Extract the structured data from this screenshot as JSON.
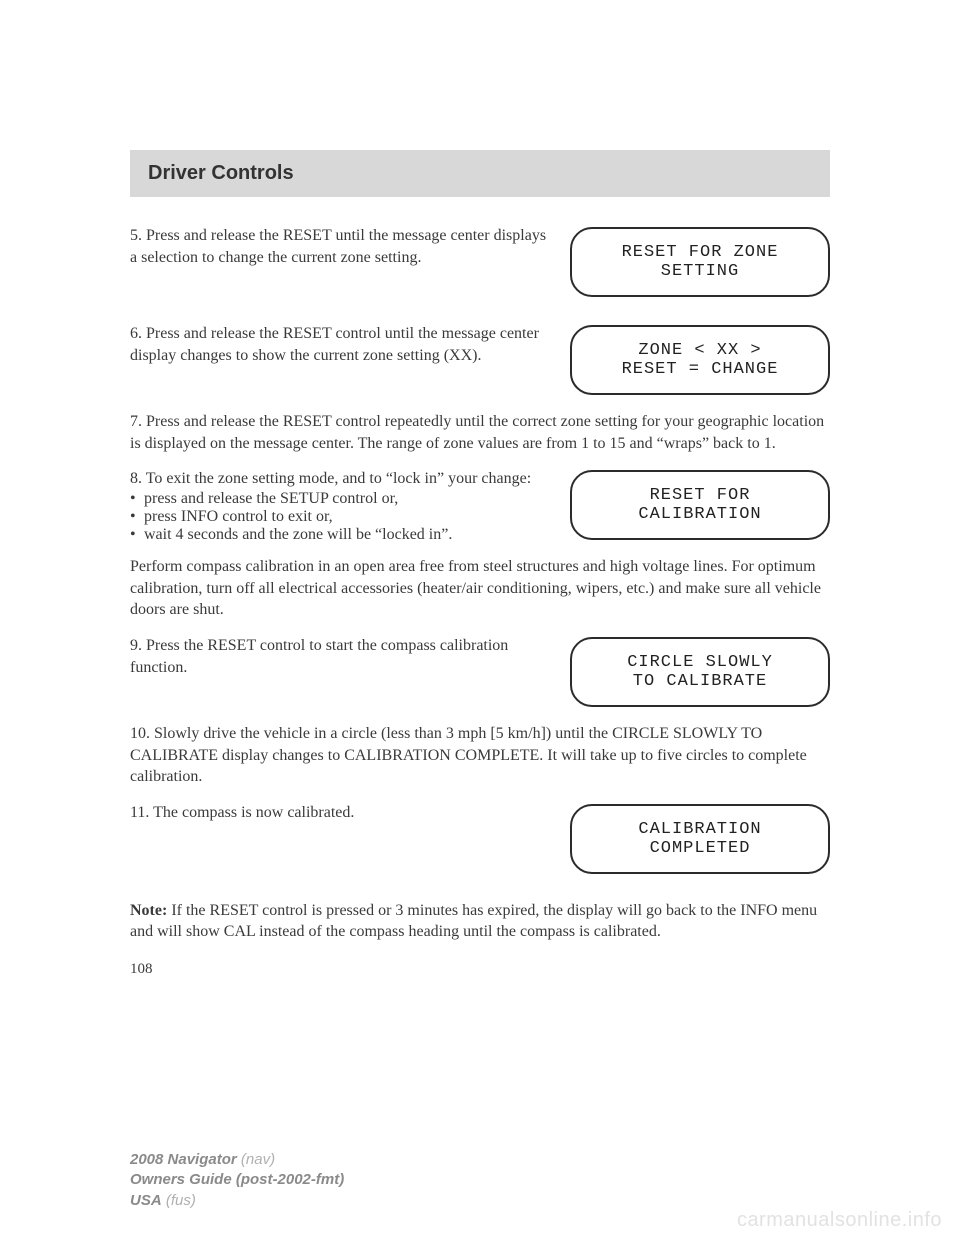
{
  "header": {
    "title": "Driver Controls"
  },
  "step5": {
    "text": "5. Press and release the RESET until the message center displays a selection to change the current zone setting.",
    "lcd": {
      "line1": "RESET FOR ZONE",
      "line2": "SETTING"
    }
  },
  "step6": {
    "text": "6. Press and release the RESET control until the message center display changes to show the current zone setting (XX).",
    "lcd": {
      "line1": "ZONE < XX >",
      "line2": "RESET = CHANGE"
    }
  },
  "step7": {
    "text": "7. Press and release the RESET control repeatedly until the correct zone setting for your geographic location is displayed on the message center. The range of zone values are from 1 to 15 and “wraps” back to 1."
  },
  "step8": {
    "intro": "8. To exit the zone setting mode, and to “lock in” your change:",
    "bullets": [
      "press and release the SETUP control or,",
      "press INFO control to exit or,",
      "wait 4 seconds and the zone will be “locked in”."
    ],
    "lcd": {
      "line1": "RESET FOR",
      "line2": "CALIBRATION"
    }
  },
  "calib_para": "Perform compass calibration in an open area free from steel structures and high voltage lines. For optimum calibration, turn off all electrical accessories (heater/air conditioning, wipers, etc.) and make sure all vehicle doors are shut.",
  "step9": {
    "text": "9. Press the RESET control to start the compass calibration function.",
    "lcd": {
      "line1": "CIRCLE SLOWLY",
      "line2": "TO CALIBRATE"
    }
  },
  "step10": {
    "text": "10. Slowly drive the vehicle in a circle (less than 3 mph [5 km/h]) until the CIRCLE SLOWLY TO CALIBRATE display changes to CALIBRATION COMPLETE. It will take up to five circles to complete calibration."
  },
  "step11": {
    "text": "11. The compass is now calibrated.",
    "lcd": {
      "line1": "CALIBRATION",
      "line2": "COMPLETED"
    }
  },
  "note": {
    "label": "Note:",
    "text": " If the RESET control is pressed or 3 minutes has expired, the display will go back to the INFO menu and will show CAL instead of the compass heading until the compass is calibrated."
  },
  "page_number": "108",
  "footer": {
    "model": "2008 Navigator",
    "model_suffix": " (nav)",
    "guide": "Owners Guide (post-2002-fmt)",
    "region": "USA",
    "region_suffix": " (fus)"
  },
  "watermark": "carmanualsonline.info",
  "colors": {
    "header_bg": "#d8d8d8",
    "text": "#3a3a3a",
    "lcd_border": "#2b2b2b",
    "footer_gray": "#8a8a8a",
    "footer_light": "#b0b0b0",
    "watermark": "#e2e2e2"
  }
}
